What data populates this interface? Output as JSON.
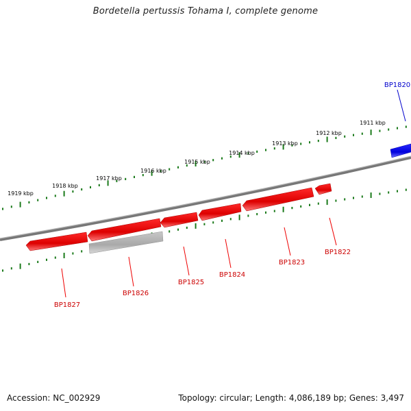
{
  "title": "Bordetella pertussis Tohama I, complete genome",
  "footer": {
    "accession": "Accession: NC_002929",
    "summary": "Topology: circular; Length: 4,086,189 bp; Genes: 3,497"
  },
  "colors": {
    "forward_gene": "#0000ee",
    "reverse_gene": "#ee0000",
    "pseudo_gene": "#aaaaaa",
    "backbone": "#808080",
    "ticks": "#1a7a1a",
    "kbp_label": "#000000"
  },
  "kbp_labels": [
    "1911 kbp",
    "1912 kbp",
    "1913 kbp",
    "1914 kbp",
    "1915 kbp",
    "1916 kbp",
    "1917 kbp",
    "1918 kbp",
    "1919 kbp"
  ],
  "genes": [
    {
      "label": "BP1820",
      "strand": "forward"
    },
    {
      "label": "BP1822",
      "strand": "reverse"
    },
    {
      "label": "BP1823",
      "strand": "reverse"
    },
    {
      "label": "BP1824",
      "strand": "reverse"
    },
    {
      "label": "BP1825",
      "strand": "reverse"
    },
    {
      "label": "BP1826",
      "strand": "reverse"
    },
    {
      "label": "BP1827",
      "strand": "reverse"
    }
  ]
}
